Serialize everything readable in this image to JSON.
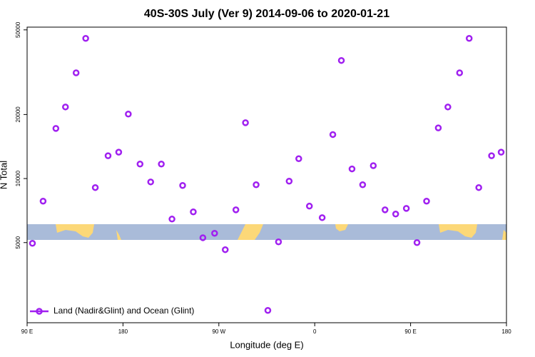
{
  "chart_data": {
    "type": "scatter",
    "title": "40S-30S July (Ver 9)   2014-09-06 to 2020-01-21",
    "xlabel": "Longitude (deg E)",
    "ylabel": "N Total",
    "ylog": true,
    "legend": "bottom-left",
    "xlim": [
      90,
      540
    ],
    "xticks": [
      {
        "value": 90,
        "label": "90 E"
      },
      180,
      {
        "value": 270,
        "label": "90 W"
      },
      {
        "value": 360,
        "label": "0"
      },
      {
        "value": 450,
        "label": "90 E"
      },
      {
        "value": 540,
        "label": "180"
      }
    ],
    "ylim": [
      2100,
      51500
    ],
    "yticks": [
      5000,
      10000,
      20000,
      50000
    ],
    "series": [
      {
        "name": "Land (Nadir&Glint) and Ocean (Glint)",
        "color": "#a020f0",
        "x": [
          95,
          105,
          117,
          126,
          136,
          145,
          154,
          166,
          176,
          185,
          196,
          206,
          216,
          226,
          236,
          246,
          255,
          266,
          276,
          286,
          295,
          305,
          316,
          326,
          336,
          345,
          355,
          367,
          377,
          385,
          395,
          405,
          415,
          426,
          436,
          446,
          456,
          465,
          476,
          485,
          496,
          505,
          514,
          526,
          535
        ],
        "values": [
          4960,
          7830,
          17200,
          21700,
          31400,
          45600,
          9070,
          12800,
          13300,
          20100,
          11700,
          9640,
          11700,
          6450,
          9280,
          6970,
          5270,
          5530,
          4630,
          7130,
          18300,
          9350,
          2400,
          5040,
          9720,
          12400,
          7420,
          6550,
          16100,
          35900,
          11100,
          9350,
          11500,
          7130,
          6810,
          7240,
          5000,
          7830,
          17300,
          21700,
          31400,
          45600,
          9070,
          12800,
          13300
        ]
      }
    ]
  }
}
